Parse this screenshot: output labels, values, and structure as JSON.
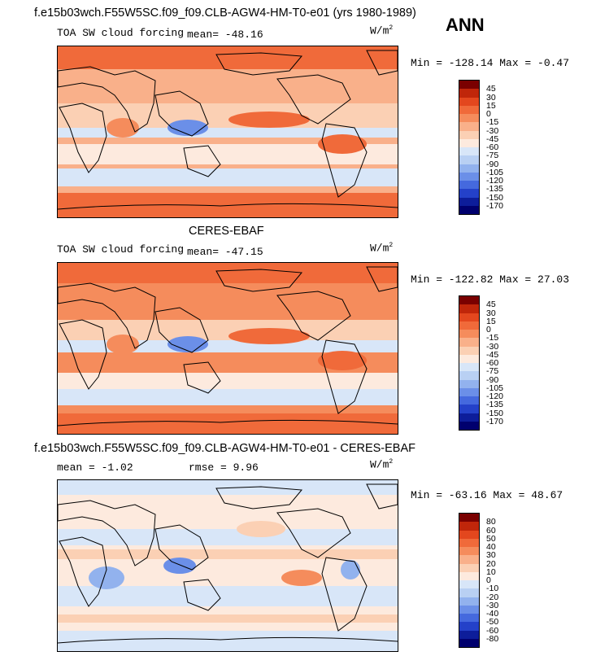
{
  "header": {
    "title_run": "f.e15b03wch.F55W5SC.f09_f09.CLB-AGW4-HM-T0-e01 (yrs 1980-1989)",
    "season": "ANN"
  },
  "panels": [
    {
      "id": "model",
      "subtitle": "",
      "field": "TOA SW cloud forcing",
      "mean_label": "mean= -48.16",
      "units": "W/m",
      "units_sup": "2",
      "minmax": "Min = -128.14 Max =  -0.47",
      "colorbar_labels": [
        "45",
        "30",
        "15",
        "0",
        "-15",
        "-30",
        "-45",
        "-60",
        "-75",
        "-90",
        "-105",
        "-120",
        "-135",
        "-150",
        "-170"
      ]
    },
    {
      "id": "obs",
      "subtitle": "CERES-EBAF",
      "field": "TOA SW cloud forcing",
      "mean_label": "mean= -47.15",
      "units": "W/m",
      "units_sup": "2",
      "minmax": "Min = -122.82 Max =  27.03",
      "colorbar_labels": [
        "45",
        "30",
        "15",
        "0",
        "-15",
        "-30",
        "-45",
        "-60",
        "-75",
        "-90",
        "-105",
        "-120",
        "-135",
        "-150",
        "-170"
      ]
    },
    {
      "id": "diff",
      "subtitle": "f.e15b03wch.F55W5SC.f09_f09.CLB-AGW4-HM-T0-e01 - CERES-EBAF",
      "mean_label": "mean =   -1.02",
      "rmse_label": "rmse =    9.96",
      "units": "W/m",
      "units_sup": "2",
      "minmax": "Min = -63.16 Max =  48.67",
      "colorbar_labels": [
        "80",
        "60",
        "50",
        "40",
        "30",
        "20",
        "10",
        "0",
        "-10",
        "-20",
        "-30",
        "-40",
        "-50",
        "-60",
        "-80"
      ]
    }
  ],
  "colors": {
    "abs_scale": [
      "#7a0000",
      "#c0260a",
      "#e3471e",
      "#f06a3a",
      "#f58c5c",
      "#f9b08a",
      "#fbd0b4",
      "#fdeade",
      "#d8e6f8",
      "#b9d0f3",
      "#92b2ee",
      "#6b8fe8",
      "#4569de",
      "#2441c9",
      "#0d1d9a",
      "#00006e"
    ],
    "diff_scale": [
      "#7a0000",
      "#c0260a",
      "#e3471e",
      "#f06a3a",
      "#f58c5c",
      "#f9b08a",
      "#fbd0b4",
      "#fdeade",
      "#d8e6f8",
      "#b9d0f3",
      "#92b2ee",
      "#6b8fe8",
      "#4569de",
      "#2441c9",
      "#0d1d9a",
      "#00006e"
    ]
  }
}
